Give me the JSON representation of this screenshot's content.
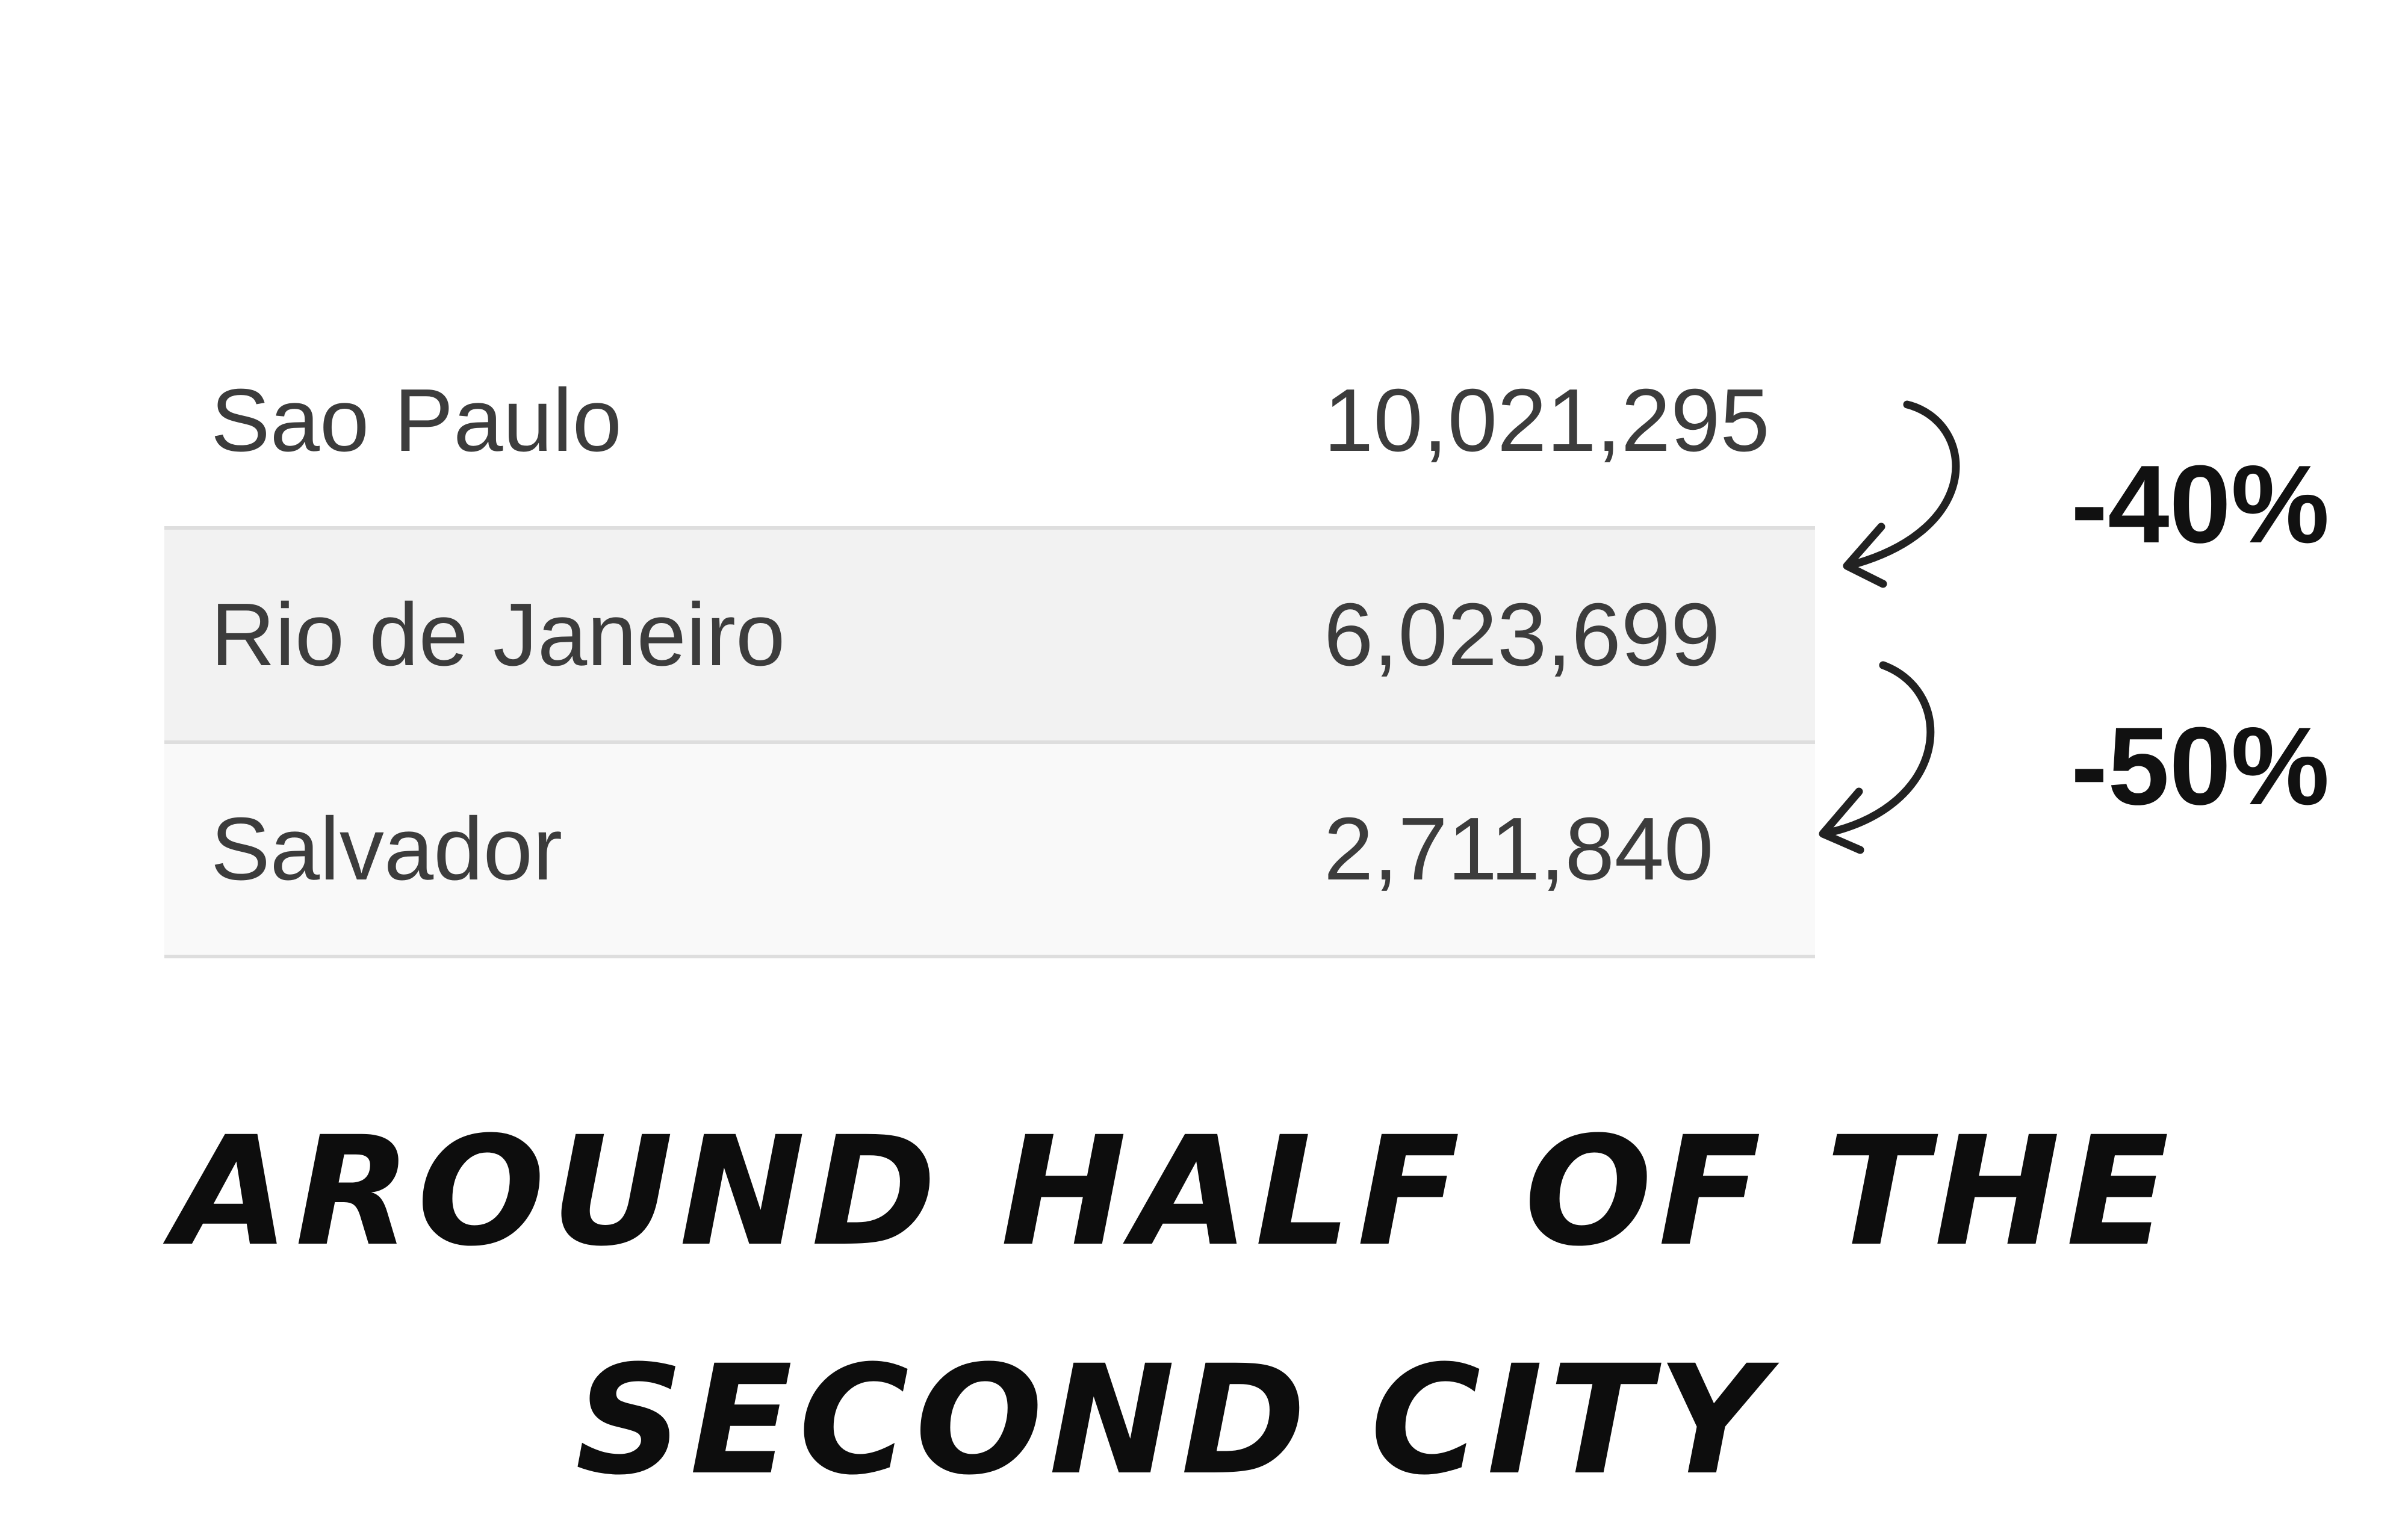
{
  "table": {
    "rows": [
      {
        "city": "Sao Paulo",
        "population": "10,021,295"
      },
      {
        "city": "Rio de Janeiro",
        "population": "6,023,699"
      },
      {
        "city": "Salvador",
        "population": "2,711,840"
      }
    ],
    "colors": {
      "border": "#dedede",
      "shade_alt": "#f2f2f2",
      "shade_last": "#f9f9f9",
      "text": "#3c3c3c"
    }
  },
  "annotations": {
    "changes": [
      {
        "label": "-40%",
        "icon": "curved-arrow-icon"
      },
      {
        "label": "-50%",
        "icon": "curved-arrow-icon"
      }
    ]
  },
  "headline": {
    "text": "Around half of the second city"
  }
}
